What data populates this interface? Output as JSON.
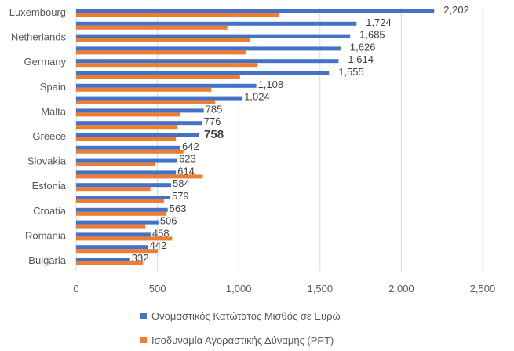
{
  "chart_data": {
    "type": "bar",
    "orientation": "horizontal",
    "categories": [
      "Luxembourg",
      "",
      "Netherlands",
      "",
      "Germany",
      "",
      "Spain",
      "",
      "Malta",
      "",
      "Greece",
      "",
      "Slovakia",
      "",
      "Estonia",
      "",
      "Croatia",
      "",
      "Romania",
      "",
      "Bulgaria"
    ],
    "series": [
      {
        "name": "Ονομαστικός Κατώτατος Μισθός σε Ευρώ",
        "color": "#4472C4",
        "values": [
          2202,
          1724,
          1685,
          1626,
          1614,
          1555,
          1108,
          1024,
          785,
          776,
          758,
          642,
          623,
          614,
          584,
          579,
          563,
          506,
          458,
          442,
          332
        ],
        "labels": [
          "2,202",
          "1,724",
          "1,685",
          "1,626",
          "1,614",
          "1,555",
          "1,108",
          "1,024",
          "785",
          "776",
          "758",
          "642",
          "623",
          "614",
          "584",
          "579",
          "563",
          "506",
          "458",
          "442",
          "332"
        ]
      },
      {
        "name": "Ισοδυναμία Αγοραστικής Δύναμης (PPT)",
        "color": "#ED7D31",
        "values": [
          1250,
          930,
          1068,
          1042,
          1113,
          1008,
          831,
          854,
          638,
          620,
          614,
          660,
          487,
          779,
          457,
          540,
          556,
          425,
          590,
          502,
          410
        ]
      }
    ],
    "highlight_label": "758",
    "xlim": [
      0,
      2500
    ],
    "xticks": [
      "0",
      "500",
      "1,000",
      "1,500",
      "2,000",
      "2,500"
    ],
    "xtick_values": [
      0,
      500,
      1000,
      1500,
      2000,
      2500
    ],
    "grid": true,
    "legend_position": "bottom"
  }
}
